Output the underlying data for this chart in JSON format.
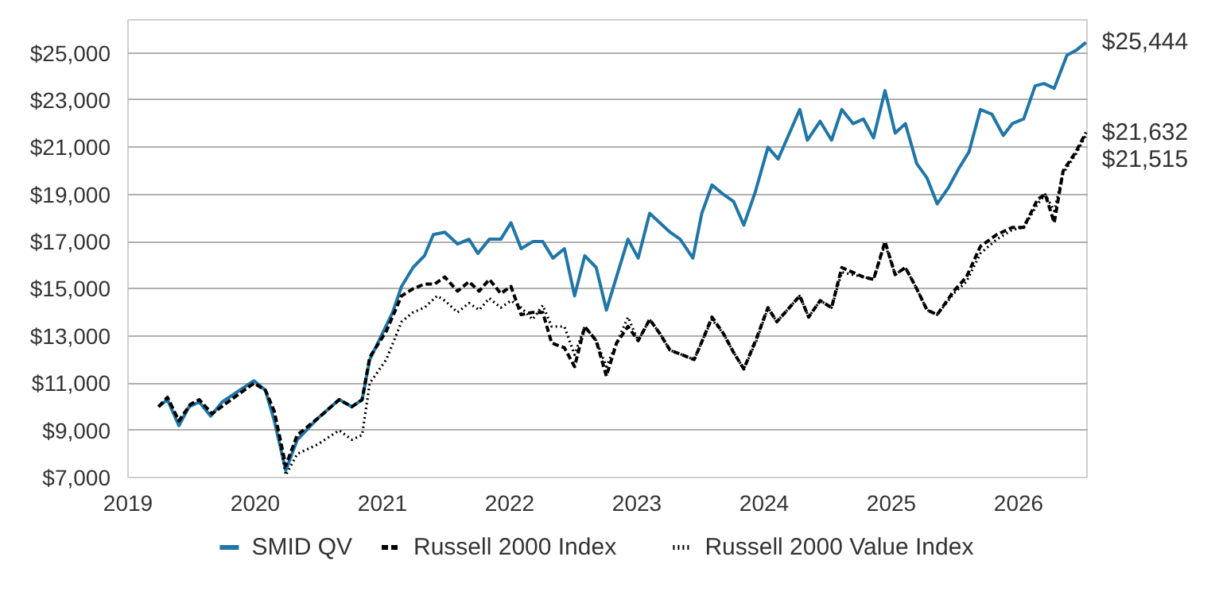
{
  "chart_data": {
    "type": "line",
    "xlim": [
      2019,
      2026.55
    ],
    "xticks": [
      2019,
      2020,
      2021,
      2022,
      2023,
      2024,
      2025,
      2026
    ],
    "ylim": [
      7000,
      26400
    ],
    "yticks": [
      {
        "value": 7000,
        "label": "$7,000"
      },
      {
        "value": 9000,
        "label": "$9,000"
      },
      {
        "value": 11000,
        "label": "$11,000"
      },
      {
        "value": 13000,
        "label": "$13,000"
      },
      {
        "value": 15000,
        "label": "$15,000"
      },
      {
        "value": 17000,
        "label": "$17,000"
      },
      {
        "value": 19000,
        "label": "$19,000"
      },
      {
        "value": 21000,
        "label": "$21,000"
      },
      {
        "value": 23000,
        "label": "$23,000"
      },
      {
        "value": 25000,
        "label": "$25,000"
      }
    ],
    "grid": "y",
    "legend": "bottom",
    "annotations": [
      "$25,444",
      "$21,632",
      "$21,515"
    ],
    "series": [
      {
        "name": "SMID QV",
        "color": "#1f76a7",
        "line_style": "solid",
        "x": [
          2019.24,
          2019.31,
          2019.4,
          2019.48,
          2019.56,
          2019.65,
          2019.74,
          2019.99,
          2020.08,
          2020.15,
          2020.24,
          2020.33,
          2020.49,
          2020.66,
          2020.76,
          2020.84,
          2020.9,
          2021.08,
          2021.15,
          2021.24,
          2021.33,
          2021.4,
          2021.49,
          2021.59,
          2021.68,
          2021.75,
          2021.84,
          2021.93,
          2022.01,
          2022.09,
          2022.18,
          2022.26,
          2022.34,
          2022.43,
          2022.51,
          2022.59,
          2022.68,
          2022.76,
          2022.93,
          2023.01,
          2023.1,
          2023.26,
          2023.34,
          2023.44,
          2023.51,
          2023.59,
          2023.68,
          2023.76,
          2023.84,
          2023.93,
          2024.03,
          2024.11,
          2024.28,
          2024.34,
          2024.44,
          2024.53,
          2024.61,
          2024.7,
          2024.78,
          2024.86,
          2024.95,
          2025.03,
          2025.11,
          2025.2,
          2025.28,
          2025.36,
          2025.45,
          2025.53,
          2025.61,
          2025.7,
          2025.79,
          2025.88,
          2025.95,
          2026.04,
          2026.13,
          2026.2,
          2026.28,
          2026.38,
          2026.45,
          2026.53
        ],
        "values": [
          10000,
          10300,
          9200,
          10000,
          10200,
          9600,
          10200,
          11100,
          10700,
          9400,
          7300,
          8600,
          9500,
          10300,
          10000,
          10300,
          12000,
          14000,
          15100,
          15900,
          16400,
          17300,
          17400,
          16900,
          17100,
          16500,
          17100,
          17100,
          17800,
          16700,
          17000,
          17000,
          16300,
          16700,
          14700,
          16400,
          15900,
          14100,
          17100,
          16300,
          18200,
          17400,
          17100,
          16300,
          18200,
          19400,
          19000,
          18700,
          17700,
          19100,
          21000,
          20500,
          22600,
          21300,
          22100,
          21300,
          22600,
          22000,
          22200,
          21400,
          23400,
          21600,
          22000,
          20300,
          19700,
          18600,
          19300,
          20100,
          20800,
          22600,
          22400,
          21500,
          22000,
          22200,
          23600,
          23700,
          23500,
          24900,
          25100,
          25444
        ]
      },
      {
        "name": "Russell 2000 Index",
        "color": "#000000",
        "line_style": "dashed",
        "x": [
          2019.24,
          2019.31,
          2019.4,
          2019.49,
          2019.56,
          2019.66,
          2019.76,
          2019.99,
          2020.08,
          2020.15,
          2020.24,
          2020.33,
          2020.49,
          2020.66,
          2020.76,
          2020.84,
          2020.9,
          2021.03,
          2021.15,
          2021.24,
          2021.33,
          2021.41,
          2021.49,
          2021.59,
          2021.68,
          2021.76,
          2021.84,
          2021.93,
          2022.01,
          2022.09,
          2022.18,
          2022.26,
          2022.33,
          2022.43,
          2022.51,
          2022.59,
          2022.68,
          2022.76,
          2022.84,
          2022.93,
          2023.01,
          2023.1,
          2023.18,
          2023.26,
          2023.45,
          2023.53,
          2023.59,
          2023.68,
          2023.76,
          2023.84,
          2023.94,
          2024.03,
          2024.1,
          2024.28,
          2024.35,
          2024.44,
          2024.53,
          2024.61,
          2024.78,
          2024.86,
          2024.95,
          2025.03,
          2025.11,
          2025.19,
          2025.28,
          2025.36,
          2025.49,
          2025.59,
          2025.7,
          2025.83,
          2025.95,
          2026.04,
          2026.15,
          2026.21,
          2026.28,
          2026.35,
          2026.45,
          2026.53
        ],
        "values": [
          10000,
          10400,
          9400,
          10100,
          10300,
          9700,
          10100,
          11000,
          10700,
          9800,
          7500,
          8800,
          9500,
          10300,
          10000,
          10300,
          12100,
          13200,
          14700,
          15000,
          15200,
          15200,
          15500,
          14900,
          15300,
          14900,
          15400,
          14800,
          15100,
          13900,
          14000,
          14000,
          12700,
          12500,
          11700,
          13400,
          12800,
          11300,
          12700,
          13400,
          12800,
          13700,
          13100,
          12400,
          12000,
          13000,
          13800,
          13100,
          12300,
          11600,
          12900,
          14200,
          13600,
          14700,
          13800,
          14500,
          14200,
          15900,
          15500,
          15400,
          17000,
          15600,
          15900,
          15100,
          14100,
          13900,
          14900,
          15500,
          16800,
          17300,
          17600,
          17600,
          18800,
          19000,
          17800,
          20000,
          20800,
          21632
        ]
      },
      {
        "name": "Russell 2000 Value Index",
        "color": "#000000",
        "line_style": "dotted",
        "x": [
          2019.24,
          2019.31,
          2019.4,
          2019.49,
          2019.56,
          2019.66,
          2019.76,
          2019.99,
          2020.08,
          2020.15,
          2020.24,
          2020.33,
          2020.49,
          2020.66,
          2020.76,
          2020.84,
          2020.9,
          2021.03,
          2021.15,
          2021.24,
          2021.33,
          2021.43,
          2021.49,
          2021.59,
          2021.68,
          2021.76,
          2021.84,
          2021.93,
          2022.01,
          2022.09,
          2022.18,
          2022.26,
          2022.33,
          2022.43,
          2022.51,
          2022.59,
          2022.68,
          2022.76,
          2022.84,
          2022.93,
          2023.01,
          2023.1,
          2023.18,
          2023.26,
          2023.45,
          2023.53,
          2023.59,
          2023.68,
          2023.76,
          2023.84,
          2023.94,
          2024.03,
          2024.1,
          2024.28,
          2024.35,
          2024.44,
          2024.53,
          2024.61,
          2024.78,
          2024.86,
          2024.95,
          2025.03,
          2025.11,
          2025.19,
          2025.28,
          2025.36,
          2025.49,
          2025.59,
          2025.7,
          2025.83,
          2025.95,
          2026.04,
          2026.15,
          2026.21,
          2026.28,
          2026.35,
          2026.45,
          2026.53
        ],
        "values": [
          10000,
          10400,
          9400,
          10100,
          10300,
          9700,
          10100,
          11000,
          10700,
          9800,
          7100,
          8000,
          8400,
          9000,
          8600,
          8800,
          11000,
          12000,
          13600,
          14000,
          14200,
          14700,
          14500,
          14000,
          14400,
          14100,
          14600,
          14200,
          14500,
          14200,
          13700,
          14300,
          13400,
          13400,
          12200,
          13400,
          12800,
          11700,
          12700,
          13800,
          12800,
          13700,
          13100,
          12400,
          12000,
          13000,
          13700,
          13100,
          12300,
          11600,
          12800,
          14200,
          13600,
          14700,
          13800,
          14500,
          14200,
          15700,
          15500,
          15400,
          16900,
          15600,
          15900,
          15100,
          14100,
          13900,
          14800,
          15300,
          16500,
          17100,
          17500,
          17600,
          18600,
          19000,
          18300,
          19900,
          20700,
          21515
        ]
      }
    ]
  }
}
